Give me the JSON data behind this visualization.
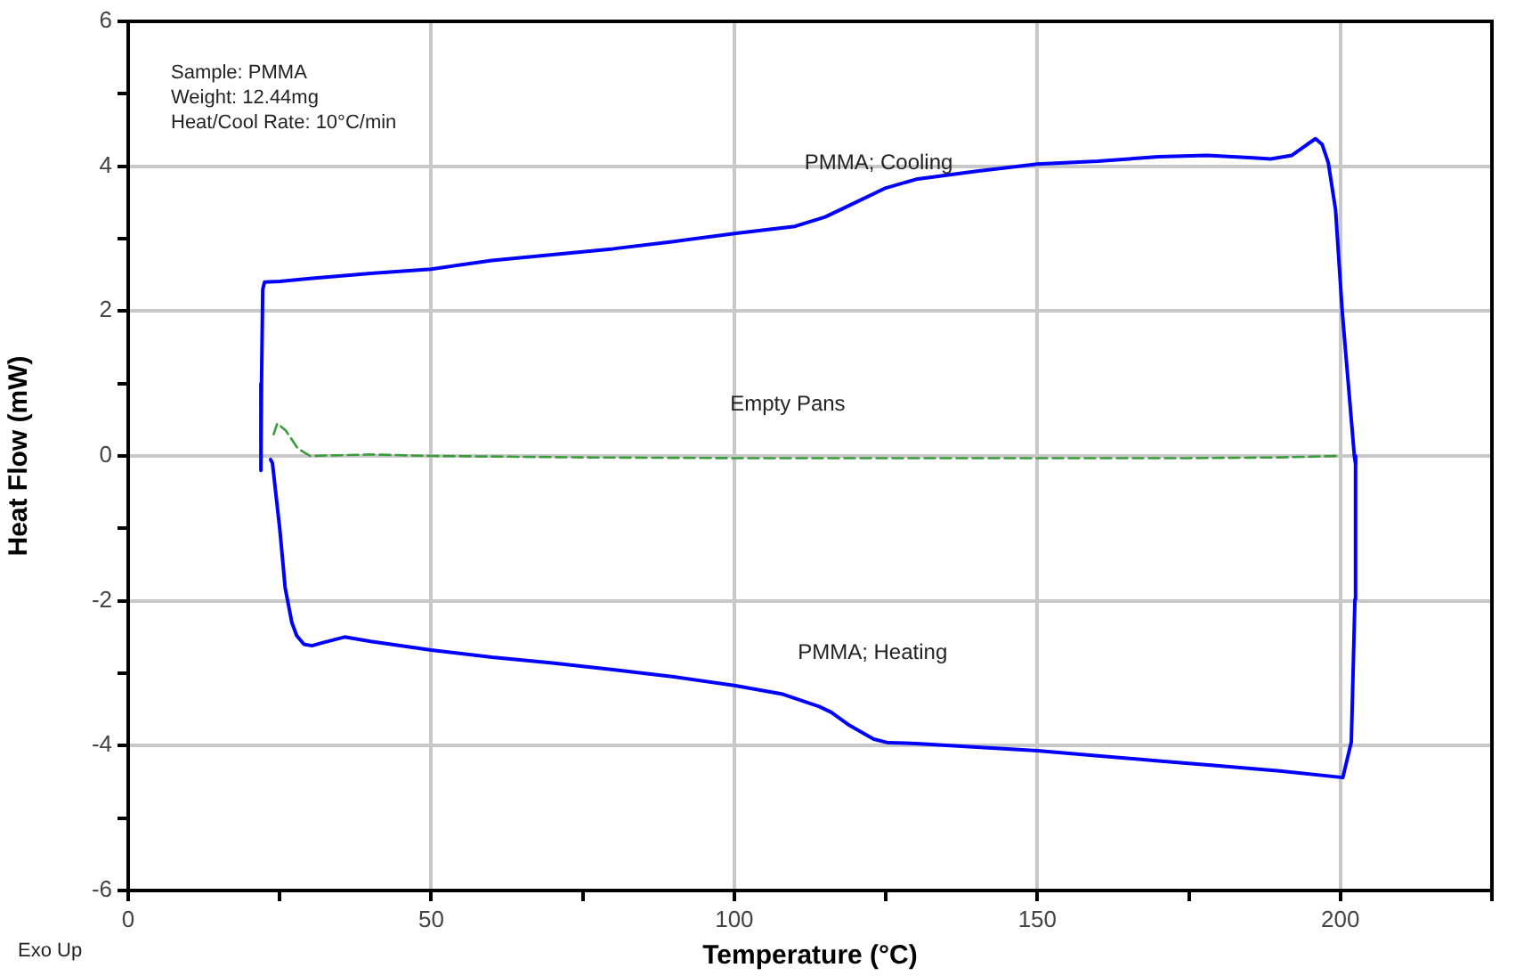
{
  "chart_data": {
    "type": "line",
    "xlabel": "Temperature (°C)",
    "ylabel": "Heat Flow (mW)",
    "xlim": [
      0,
      225
    ],
    "ylim": [
      -6,
      6
    ],
    "xticks": [
      0,
      {
        "value": 25,
        "label": null
      },
      50,
      {
        "value": 75,
        "label": null
      },
      100,
      {
        "value": 125,
        "label": null
      },
      150,
      {
        "value": 175,
        "label": null
      },
      200,
      {
        "value": 225,
        "label": null
      }
    ],
    "yticks": [
      -6,
      {
        "value": -5,
        "label": null
      },
      -4,
      {
        "value": -3,
        "label": null
      },
      -2,
      {
        "value": -1,
        "label": null
      },
      0,
      {
        "value": 1,
        "label": null
      },
      2,
      {
        "value": 3,
        "label": null
      },
      4,
      {
        "value": 5,
        "label": null
      },
      6
    ],
    "grid": true,
    "legend": false,
    "marker": "none",
    "series": [
      {
        "name": "PMMA; Heating",
        "color": "#0000ff",
        "line_style": "solid",
        "x": [
          23.5,
          23.8,
          25,
          25.9,
          27,
          27.8,
          29,
          30.3,
          32,
          35.7,
          40,
          50,
          60,
          70,
          80,
          90,
          100,
          108,
          114,
          116,
          119,
          123,
          125.4,
          130,
          140,
          150,
          160,
          170,
          180,
          190,
          200.4,
          201.8,
          202.4,
          202.5
        ],
        "values": [
          -0.05,
          -0.1,
          -1.0,
          -1.82,
          -2.3,
          -2.48,
          -2.6,
          -2.62,
          -2.58,
          -2.5,
          -2.56,
          -2.68,
          -2.78,
          -2.86,
          -2.95,
          -3.05,
          -3.17,
          -3.29,
          -3.46,
          -3.54,
          -3.72,
          -3.91,
          -3.96,
          -3.97,
          -4.02,
          -4.07,
          -4.14,
          -4.21,
          -4.28,
          -4.35,
          -4.44,
          -3.95,
          -1.98,
          0
        ]
      },
      {
        "name": "PMMA; Cooling",
        "color": "#0000ff",
        "line_style": "solid",
        "x": [
          202.5,
          202.3,
          201.3,
          200.3,
          199.2,
          198,
          197,
          195.9,
          194.5,
          192,
          188.5,
          185,
          178,
          170,
          160,
          150,
          140,
          130,
          125,
          120,
          115,
          110,
          100,
          90,
          80,
          70,
          60,
          50,
          40,
          30,
          25,
          22.5,
          22.2,
          22,
          21.8,
          22
        ],
        "values": [
          -0.1,
          0,
          1.0,
          2.0,
          3.4,
          4.05,
          4.3,
          4.38,
          4.3,
          4.15,
          4.1,
          4.12,
          4.15,
          4.13,
          4.07,
          4.03,
          3.93,
          3.82,
          3.7,
          3.5,
          3.3,
          3.17,
          3.07,
          2.96,
          2.86,
          2.78,
          2.7,
          2.58,
          2.52,
          2.45,
          2.41,
          2.4,
          2.3,
          1.0,
          -0.2,
          -0.1
        ]
      },
      {
        "name": "Empty Pans",
        "color": "#3c9c3c",
        "line_style": "dashed",
        "x": [
          24,
          24.6,
          26,
          28,
          30,
          35,
          40,
          50,
          75,
          100,
          125,
          150,
          175,
          190,
          200
        ],
        "values": [
          0.3,
          0.45,
          0.35,
          0.1,
          0,
          0.01,
          0.02,
          0,
          -0.02,
          -0.03,
          -0.03,
          -0.03,
          -0.03,
          -0.02,
          0
        ]
      }
    ],
    "annotations": [
      "Sample: PMMA",
      "Weight: 12.44mg",
      "Heat/Cool Rate: 10°C/min",
      "Exo Up"
    ]
  }
}
